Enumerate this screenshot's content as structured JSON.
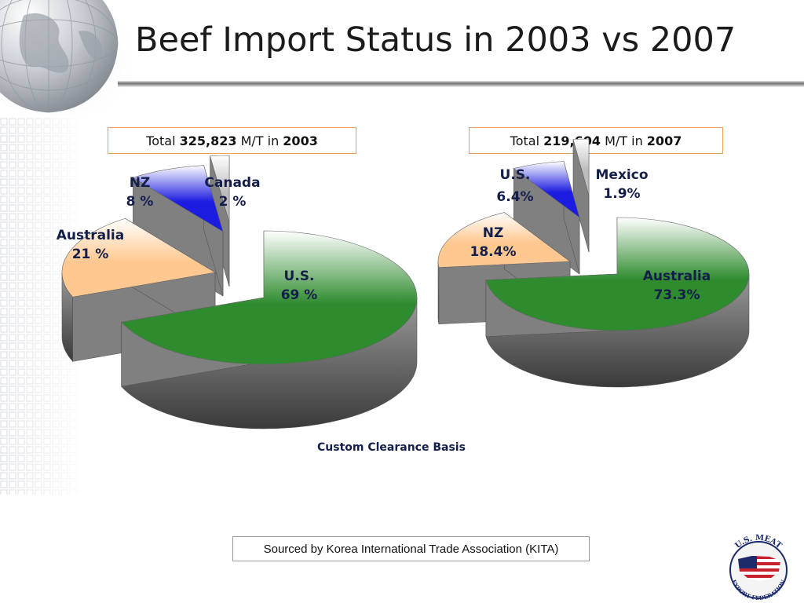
{
  "slide": {
    "title": "Beef Import Status in 2003 vs 2007",
    "basis_note": "Custom Clearance Basis",
    "source": "Sourced by Korea International Trade Association (KITA)",
    "logo_text": "U.S. MEAT EXPORT FEDERATION"
  },
  "totals": [
    {
      "prefix": "Total ",
      "amount": "325,823",
      "unit": " M/T in ",
      "year": "2003"
    },
    {
      "prefix": "Total ",
      "amount": "219,604",
      "unit": " M/T in ",
      "year": "2007"
    }
  ],
  "colors": {
    "us_2003": "#2e8b2e",
    "australia_2007": "#2e8b2e",
    "australia_2003": "#ffc890",
    "nz_2007": "#ffc890",
    "nz_2003": "#1c1ce0",
    "us_2007": "#1c1ce0",
    "canada": "#bdbdbd",
    "mexico": "#bdbdbd",
    "label_text": "#141e4a",
    "box_border": "#f0a050"
  },
  "chart_data": [
    {
      "type": "pie",
      "title": "Total 325,823 M/T in 2003",
      "slices": [
        {
          "name": "U.S.",
          "value": 69,
          "label": "69 %"
        },
        {
          "name": "Australia",
          "value": 21,
          "label": "21 %"
        },
        {
          "name": "NZ",
          "value": 8,
          "label": "8 %"
        },
        {
          "name": "Canada",
          "value": 2,
          "label": "2 %"
        }
      ]
    },
    {
      "type": "pie",
      "title": "Total 219,604 M/T in 2007",
      "slices": [
        {
          "name": "Australia",
          "value": 73.3,
          "label": "73.3%"
        },
        {
          "name": "NZ",
          "value": 18.4,
          "label": "18.4%"
        },
        {
          "name": "U.S.",
          "value": 6.4,
          "label": "6.4%"
        },
        {
          "name": "Mexico",
          "value": 1.9,
          "label": "1.9%"
        }
      ]
    }
  ]
}
